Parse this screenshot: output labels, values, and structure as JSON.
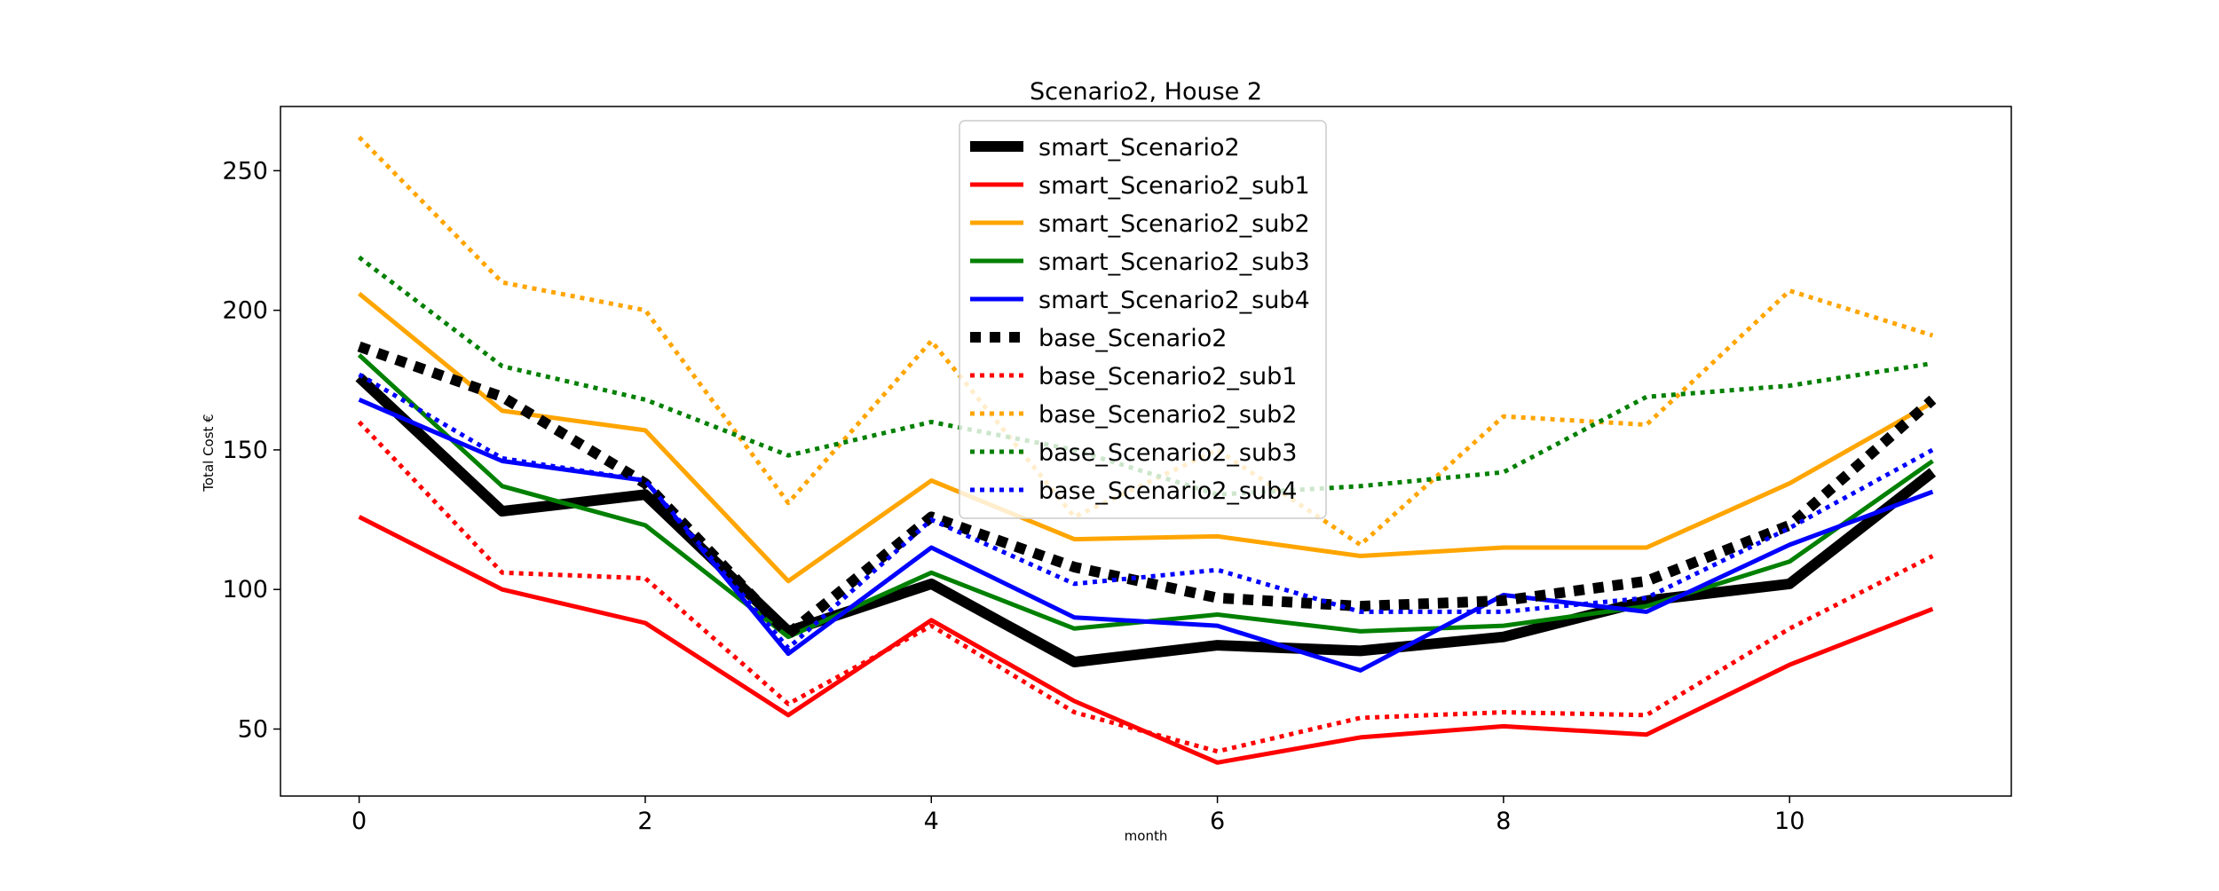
{
  "chart_data": {
    "type": "line",
    "title": "Scenario2, House 2",
    "xlabel": "month",
    "ylabel": "Total Cost €",
    "xlim": [
      -0.55,
      11.55
    ],
    "ylim": [
      26,
      273
    ],
    "xticks": [
      0,
      2,
      4,
      6,
      8,
      10
    ],
    "yticks": [
      50,
      100,
      150,
      200,
      250
    ],
    "grid": false,
    "legend_position": "top-center",
    "x": [
      0,
      1,
      2,
      3,
      4,
      5,
      6,
      7,
      8,
      9,
      10,
      11
    ],
    "series": [
      {
        "name": "smart_Scenario2",
        "color": "#000000",
        "style": "solid",
        "weight": "heavy",
        "values": [
          176,
          128,
          134,
          85,
          102,
          74,
          80,
          78,
          83,
          96,
          102,
          142
        ]
      },
      {
        "name": "smart_Scenario2_sub1",
        "color": "#ff0000",
        "style": "solid",
        "weight": "normal",
        "values": [
          126,
          100,
          88,
          55,
          89,
          60,
          38,
          47,
          51,
          48,
          73,
          93
        ]
      },
      {
        "name": "smart_Scenario2_sub2",
        "color": "#ffa500",
        "style": "solid",
        "weight": "normal",
        "values": [
          206,
          164,
          157,
          103,
          139,
          118,
          119,
          112,
          115,
          115,
          138,
          167
        ]
      },
      {
        "name": "smart_Scenario2_sub3",
        "color": "#008000",
        "style": "solid",
        "weight": "normal",
        "values": [
          184,
          137,
          123,
          83,
          106,
          86,
          91,
          85,
          87,
          94,
          110,
          146
        ]
      },
      {
        "name": "smart_Scenario2_sub4",
        "color": "#0000ff",
        "style": "solid",
        "weight": "normal",
        "values": [
          168,
          146,
          139,
          77,
          115,
          90,
          87,
          71,
          98,
          92,
          116,
          135
        ]
      },
      {
        "name": "base_Scenario2",
        "color": "#000000",
        "style": "dotted",
        "weight": "heavy",
        "values": [
          187,
          169,
          138,
          84,
          126,
          108,
          97,
          94,
          96,
          103,
          123,
          168
        ]
      },
      {
        "name": "base_Scenario2_sub1",
        "color": "#ff0000",
        "style": "dotted",
        "weight": "normal",
        "values": [
          160,
          106,
          104,
          59,
          87,
          56,
          42,
          54,
          56,
          55,
          86,
          112
        ]
      },
      {
        "name": "base_Scenario2_sub2",
        "color": "#ffa500",
        "style": "dotted",
        "weight": "normal",
        "values": [
          262,
          210,
          200,
          131,
          189,
          126,
          150,
          116,
          162,
          159,
          207,
          191
        ]
      },
      {
        "name": "base_Scenario2_sub3",
        "color": "#008000",
        "style": "dotted",
        "weight": "normal",
        "values": [
          219,
          180,
          168,
          148,
          160,
          150,
          134,
          137,
          142,
          169,
          173,
          181
        ]
      },
      {
        "name": "base_Scenario2_sub4",
        "color": "#0000ff",
        "style": "dotted",
        "weight": "normal",
        "values": [
          177,
          147,
          139,
          79,
          125,
          102,
          107,
          92,
          92,
          97,
          122,
          150
        ]
      }
    ]
  }
}
